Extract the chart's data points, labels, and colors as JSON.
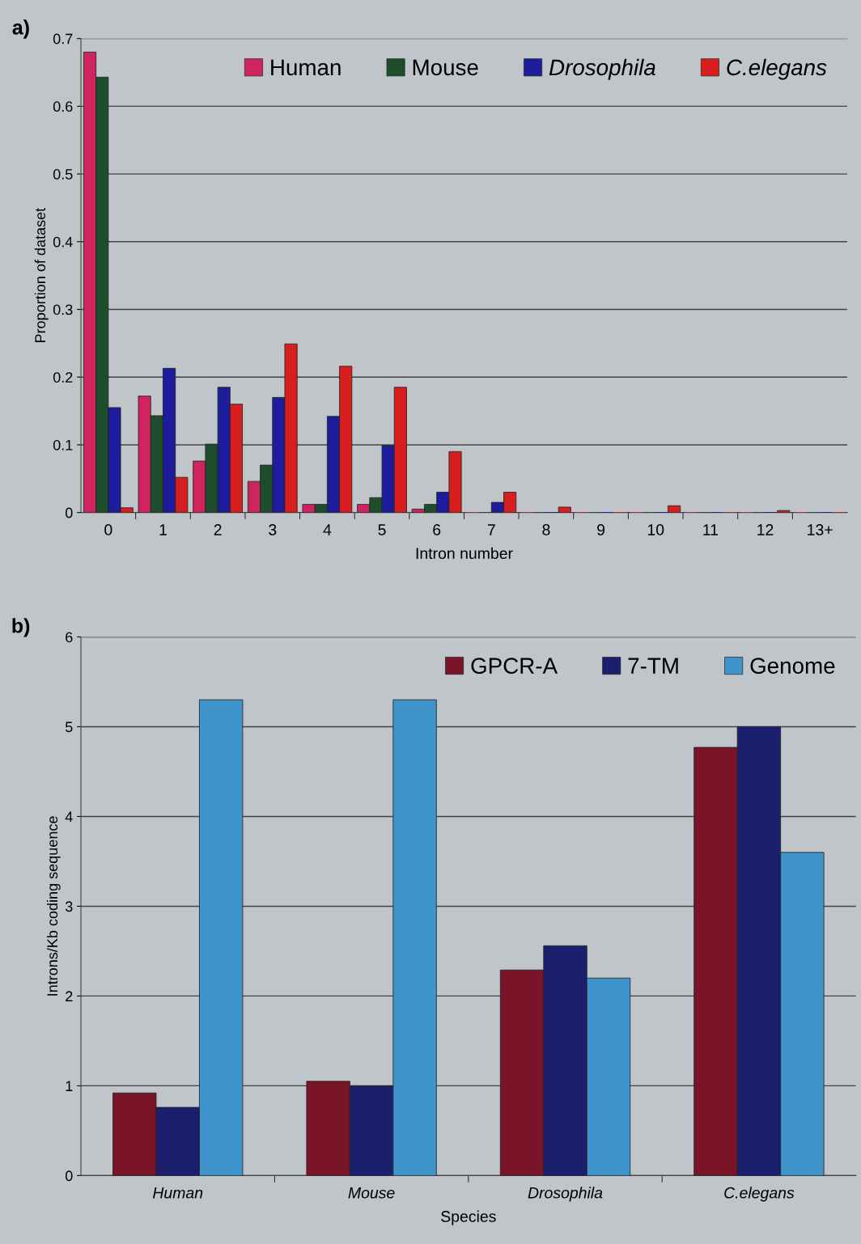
{
  "chart_data": [
    {
      "type": "bar",
      "title": "a)",
      "xlabel": "Intron number",
      "ylabel": "Proportion of dataset",
      "categories": [
        "0",
        "1",
        "2",
        "3",
        "4",
        "5",
        "6",
        "7",
        "8",
        "9",
        "10",
        "11",
        "12",
        "13+"
      ],
      "series": [
        {
          "name": "Human",
          "color": "#d0245e",
          "values": [
            0.68,
            0.172,
            0.076,
            0.046,
            0.012,
            0.012,
            0.005,
            0,
            0,
            0,
            0,
            0,
            0,
            0
          ]
        },
        {
          "name": "Mouse",
          "color": "#1e4d2b",
          "values": [
            0.643,
            0.143,
            0.101,
            0.07,
            0.012,
            0.022,
            0.012,
            0,
            0,
            0,
            0,
            0,
            0,
            0
          ]
        },
        {
          "name": "Drosophila",
          "color": "#1c1c9c",
          "values": [
            0.155,
            0.213,
            0.185,
            0.17,
            0.142,
            0.099,
            0.03,
            0.015,
            0,
            0,
            0,
            0,
            0,
            0
          ]
        },
        {
          "name": "C.elegans",
          "color": "#d81e1e",
          "values": [
            0.007,
            0.052,
            0.16,
            0.249,
            0.216,
            0.185,
            0.09,
            0.03,
            0.008,
            0,
            0.01,
            0,
            0.003,
            0
          ]
        }
      ],
      "ylim": [
        0,
        0.7
      ],
      "yticks": [
        0,
        0.1,
        0.2,
        0.3,
        0.4,
        0.5,
        0.6,
        0.7
      ],
      "grid": "y",
      "legend": "top right"
    },
    {
      "type": "bar",
      "title": "b)",
      "xlabel": "Species",
      "ylabel": "Introns/Kb coding sequence",
      "categories": [
        "Human",
        "Mouse",
        "Drosophila",
        "C.elegans"
      ],
      "series": [
        {
          "name": "GPCR-A",
          "color": "#7a1428",
          "values": [
            0.92,
            1.05,
            2.29,
            4.77
          ]
        },
        {
          "name": "7-TM",
          "color": "#1c1f6e",
          "values": [
            0.76,
            1.0,
            2.56,
            5.0
          ]
        },
        {
          "name": "Genome",
          "color": "#3f94cc",
          "values": [
            5.3,
            5.3,
            2.2,
            3.6
          ]
        }
      ],
      "ylim": [
        0,
        6
      ],
      "yticks": [
        0,
        1,
        2,
        3,
        4,
        5,
        6
      ],
      "grid": "y",
      "legend": "top right"
    }
  ]
}
